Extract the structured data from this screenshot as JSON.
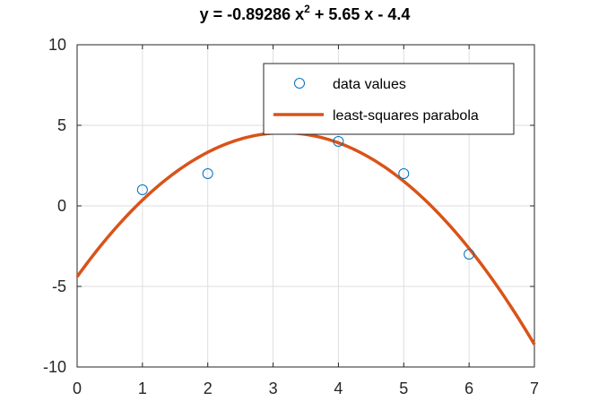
{
  "chart_data": {
    "type": "scatter",
    "title": {
      "prefix": "y = -0.89286 x",
      "superscript": "2",
      "suffix": " + 5.65 x - 4.4"
    },
    "xlabel": "",
    "ylabel": "",
    "xlim": [
      0,
      7
    ],
    "ylim": [
      -10,
      10
    ],
    "x_ticks": [
      0,
      1,
      2,
      3,
      4,
      5,
      6,
      7
    ],
    "y_ticks": [
      -10,
      -5,
      0,
      5,
      10
    ],
    "x_tick_labels": [
      "0",
      "1",
      "2",
      "3",
      "4",
      "5",
      "6",
      "7"
    ],
    "y_tick_labels": [
      "-10",
      "-5",
      "0",
      "5",
      "10"
    ],
    "grid": true,
    "legend_position": "top-right",
    "series": [
      {
        "name": "data values",
        "kind": "markers",
        "marker": "circle",
        "color": "#0072BD",
        "x": [
          1,
          2,
          4,
          5,
          6
        ],
        "y": [
          1,
          2,
          4,
          2,
          -3
        ]
      },
      {
        "name": "least-squares parabola",
        "kind": "line",
        "color": "#D95319",
        "coefficients": [
          -0.89286,
          5.65,
          -4.4
        ]
      }
    ]
  }
}
